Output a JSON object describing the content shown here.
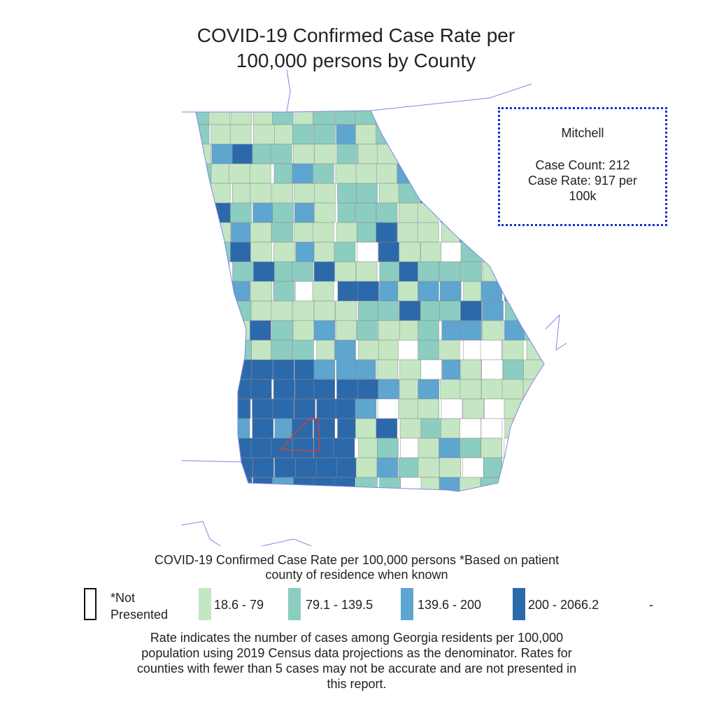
{
  "title_lines": [
    "COVID-19 Confirmed Case Rate per",
    "100,000 persons by County"
  ],
  "tooltip": {
    "county": "Mitchell",
    "lines": [
      "Case Count: 212",
      "Case Rate: 917 per",
      "100k"
    ]
  },
  "legend": {
    "caption_lines": [
      "COVID-19 Confirmed Case Rate per 100,000 persons *Based on patient",
      "county of residence when known"
    ],
    "items": [
      {
        "label": "*Not Presented",
        "color": "#ffffff"
      },
      {
        "label": "18.6 - 79",
        "color": "#c4e6c3"
      },
      {
        "label": "79.1 - 139.5",
        "color": "#8ccdc1"
      },
      {
        "label": "139.6 - 200",
        "color": "#5ea5d0"
      },
      {
        "label": "200 - 2066.2",
        "color": "#2c69ab"
      }
    ],
    "trailing": "-"
  },
  "note_lines": [
    "Rate indicates the number of cases among Georgia residents per 100,000",
    "population using 2019 Census data projections as the denominator. Rates for",
    "counties with fewer than 5 cases may not be accurate and are not presented in",
    "this report."
  ]
}
